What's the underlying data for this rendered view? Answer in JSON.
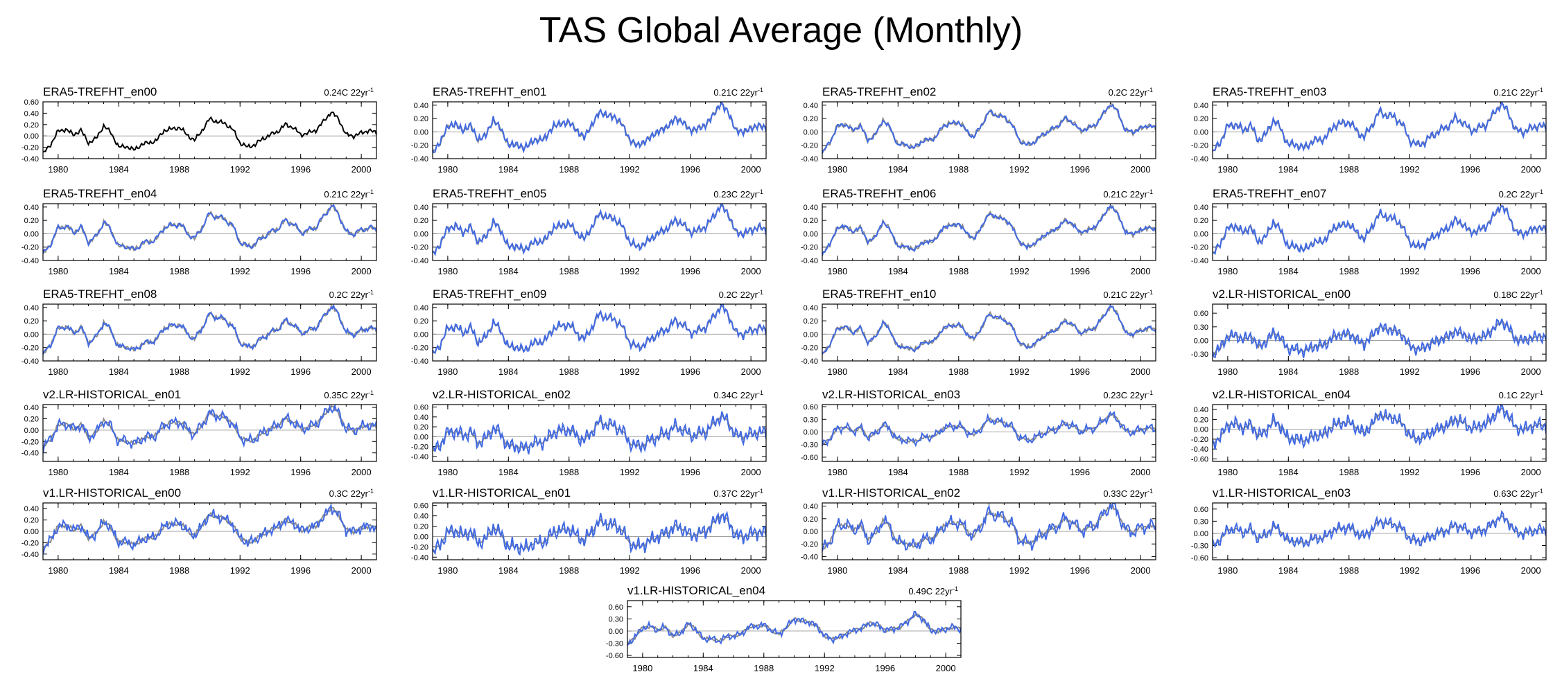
{
  "title": "TAS Global Average (Monthly)",
  "colors": {
    "model": "#4169e1",
    "obs": "#8c8c8c",
    "obs_only": "#000000",
    "zero": "#a0a0a0"
  },
  "time": {
    "start": 1979.0,
    "end": 2001.0,
    "ticks": [
      1980,
      1984,
      1988,
      1992,
      1996,
      2000
    ],
    "tick_labels": [
      "1980",
      "1984",
      "1988",
      "1992",
      "1996",
      "2000"
    ]
  },
  "obs_anomaly": {
    "name": "ERA5-TREFHT_en00",
    "points": [
      [
        1979.0,
        -0.32
      ],
      [
        1979.5,
        -0.15
      ],
      [
        1980.0,
        0.08
      ],
      [
        1980.5,
        0.12
      ],
      [
        1981.0,
        0.02
      ],
      [
        1981.5,
        0.1
      ],
      [
        1982.0,
        -0.12
      ],
      [
        1982.5,
        -0.05
      ],
      [
        1983.0,
        0.18
      ],
      [
        1983.5,
        0.05
      ],
      [
        1984.0,
        -0.2
      ],
      [
        1984.5,
        -0.18
      ],
      [
        1985.0,
        -0.25
      ],
      [
        1985.5,
        -0.15
      ],
      [
        1986.0,
        -0.12
      ],
      [
        1986.5,
        -0.08
      ],
      [
        1987.0,
        0.1
      ],
      [
        1987.5,
        0.12
      ],
      [
        1988.0,
        0.15
      ],
      [
        1988.5,
        0.02
      ],
      [
        1989.0,
        -0.08
      ],
      [
        1989.5,
        0.1
      ],
      [
        1990.0,
        0.3
      ],
      [
        1990.5,
        0.25
      ],
      [
        1991.0,
        0.22
      ],
      [
        1991.5,
        0.12
      ],
      [
        1992.0,
        -0.12
      ],
      [
        1992.5,
        -0.2
      ],
      [
        1993.0,
        -0.15
      ],
      [
        1993.5,
        -0.05
      ],
      [
        1994.0,
        0.02
      ],
      [
        1994.5,
        0.08
      ],
      [
        1995.0,
        0.2
      ],
      [
        1995.5,
        0.15
      ],
      [
        1996.0,
        0.02
      ],
      [
        1996.5,
        0.05
      ],
      [
        1997.0,
        0.1
      ],
      [
        1997.5,
        0.25
      ],
      [
        1998.0,
        0.42
      ],
      [
        1998.5,
        0.3
      ],
      [
        1999.0,
        0.02
      ],
      [
        1999.5,
        0.0
      ],
      [
        2000.0,
        0.05
      ],
      [
        2000.5,
        0.1
      ],
      [
        2001.0,
        0.05
      ]
    ]
  },
  "panels": [
    {
      "name": "ERA5-TREFHT_en00",
      "trend": "0.24C 22yr",
      "ylim": [
        -0.4,
        0.6
      ],
      "yticks": [
        -0.4,
        -0.2,
        0.0,
        0.2,
        0.4,
        0.6
      ],
      "ytick_labels": [
        "-0.40",
        "-0.20",
        "0.00",
        "0.20",
        "0.40",
        "0.60"
      ],
      "obs_only": true,
      "amp": 0,
      "seed": 0
    },
    {
      "name": "ERA5-TREFHT_en01",
      "trend": "0.21C 22yr",
      "ylim": [
        -0.4,
        0.45
      ],
      "yticks": [
        -0.4,
        -0.2,
        0.0,
        0.2,
        0.4
      ],
      "ytick_labels": [
        "-0.40",
        "-0.20",
        "0.00",
        "0.20",
        "0.40"
      ],
      "amp": 0.05,
      "seed": 1
    },
    {
      "name": "ERA5-TREFHT_en02",
      "trend": "0.2C 22yr",
      "ylim": [
        -0.4,
        0.45
      ],
      "yticks": [
        -0.4,
        -0.2,
        0.0,
        0.2,
        0.4
      ],
      "ytick_labels": [
        "-0.40",
        "-0.20",
        "0.00",
        "0.20",
        "0.40"
      ],
      "amp": 0.05,
      "seed": 2
    },
    {
      "name": "ERA5-TREFHT_en03",
      "trend": "0.21C 22yr",
      "ylim": [
        -0.4,
        0.45
      ],
      "yticks": [
        -0.4,
        -0.2,
        0.0,
        0.2,
        0.4
      ],
      "ytick_labels": [
        "-0.40",
        "-0.20",
        "0.00",
        "0.20",
        "0.40"
      ],
      "amp": 0.05,
      "seed": 3
    },
    {
      "name": "ERA5-TREFHT_en04",
      "trend": "0.21C 22yr",
      "ylim": [
        -0.4,
        0.45
      ],
      "yticks": [
        -0.4,
        -0.2,
        0.0,
        0.2,
        0.4
      ],
      "ytick_labels": [
        "-0.40",
        "-0.20",
        "0.00",
        "0.20",
        "0.40"
      ],
      "amp": 0.05,
      "seed": 4
    },
    {
      "name": "ERA5-TREFHT_en05",
      "trend": "0.23C 22yr",
      "ylim": [
        -0.4,
        0.45
      ],
      "yticks": [
        -0.4,
        -0.2,
        0.0,
        0.2,
        0.4
      ],
      "ytick_labels": [
        "-0.40",
        "-0.20",
        "0.00",
        "0.20",
        "0.40"
      ],
      "amp": 0.05,
      "seed": 5
    },
    {
      "name": "ERA5-TREFHT_en06",
      "trend": "0.21C 22yr",
      "ylim": [
        -0.4,
        0.45
      ],
      "yticks": [
        -0.4,
        -0.2,
        0.0,
        0.2,
        0.4
      ],
      "ytick_labels": [
        "-0.40",
        "-0.20",
        "0.00",
        "0.20",
        "0.40"
      ],
      "amp": 0.05,
      "seed": 6
    },
    {
      "name": "ERA5-TREFHT_en07",
      "trend": "0.2C 22yr",
      "ylim": [
        -0.4,
        0.45
      ],
      "yticks": [
        -0.4,
        -0.2,
        0.0,
        0.2,
        0.4
      ],
      "ytick_labels": [
        "-0.40",
        "-0.20",
        "0.00",
        "0.20",
        "0.40"
      ],
      "amp": 0.05,
      "seed": 7
    },
    {
      "name": "ERA5-TREFHT_en08",
      "trend": "0.2C 22yr",
      "ylim": [
        -0.4,
        0.45
      ],
      "yticks": [
        -0.4,
        -0.2,
        0.0,
        0.2,
        0.4
      ],
      "ytick_labels": [
        "-0.40",
        "-0.20",
        "0.00",
        "0.20",
        "0.40"
      ],
      "amp": 0.05,
      "seed": 8
    },
    {
      "name": "ERA5-TREFHT_en09",
      "trend": "0.2C 22yr",
      "ylim": [
        -0.4,
        0.45
      ],
      "yticks": [
        -0.4,
        -0.2,
        0.0,
        0.2,
        0.4
      ],
      "ytick_labels": [
        "-0.40",
        "-0.20",
        "0.00",
        "0.20",
        "0.40"
      ],
      "amp": 0.05,
      "seed": 9
    },
    {
      "name": "ERA5-TREFHT_en10",
      "trend": "0.21C 22yr",
      "ylim": [
        -0.4,
        0.45
      ],
      "yticks": [
        -0.4,
        -0.2,
        0.0,
        0.2,
        0.4
      ],
      "ytick_labels": [
        "-0.40",
        "-0.20",
        "0.00",
        "0.20",
        "0.40"
      ],
      "amp": 0.05,
      "seed": 10
    },
    {
      "name": "v2.LR-HISTORICAL_en00",
      "trend": "0.18C 22yr",
      "ylim": [
        -0.45,
        0.8
      ],
      "yticks": [
        -0.3,
        0.0,
        0.3,
        0.6
      ],
      "ytick_labels": [
        "-0.30",
        "0.00",
        "0.30",
        "0.60"
      ],
      "amp": 0.15,
      "seed": 11
    },
    {
      "name": "v2.LR-HISTORICAL_en01",
      "trend": "0.35C 22yr",
      "ylim": [
        -0.55,
        0.45
      ],
      "yticks": [
        -0.4,
        -0.2,
        0.0,
        0.2,
        0.4
      ],
      "ytick_labels": [
        "-0.40",
        "-0.20",
        "0.00",
        "0.20",
        "0.40"
      ],
      "amp": 0.15,
      "seed": 12
    },
    {
      "name": "v2.LR-HISTORICAL_en02",
      "trend": "0.34C 22yr",
      "ylim": [
        -0.5,
        0.65
      ],
      "yticks": [
        -0.4,
        -0.2,
        0.0,
        0.2,
        0.4,
        0.6
      ],
      "ytick_labels": [
        "-0.40",
        "-0.20",
        "0.00",
        "0.20",
        "0.40",
        "0.60"
      ],
      "amp": 0.15,
      "seed": 13
    },
    {
      "name": "v2.LR-HISTORICAL_en03",
      "trend": "0.23C 22yr",
      "ylim": [
        -0.7,
        0.65
      ],
      "yticks": [
        -0.6,
        -0.3,
        0.0,
        0.3,
        0.6
      ],
      "ytick_labels": [
        "-0.60",
        "-0.30",
        "0.00",
        "0.30",
        "0.60"
      ],
      "amp": 0.15,
      "seed": 14
    },
    {
      "name": "v2.LR-HISTORICAL_en04",
      "trend": "0.1C 22yr",
      "ylim": [
        -0.65,
        0.5
      ],
      "yticks": [
        -0.6,
        -0.4,
        -0.2,
        0.0,
        0.2,
        0.4
      ],
      "ytick_labels": [
        "-0.60",
        "-0.40",
        "-0.20",
        "0.00",
        "0.20",
        "0.40"
      ],
      "amp": 0.15,
      "seed": 15
    },
    {
      "name": "v1.LR-HISTORICAL_en00",
      "trend": "0.3C 22yr",
      "ylim": [
        -0.5,
        0.5
      ],
      "yticks": [
        -0.4,
        -0.2,
        0.0,
        0.2,
        0.4
      ],
      "ytick_labels": [
        "-0.40",
        "-0.20",
        "0.00",
        "0.20",
        "0.40"
      ],
      "amp": 0.15,
      "seed": 16
    },
    {
      "name": "v1.LR-HISTORICAL_en01",
      "trend": "0.37C 22yr",
      "ylim": [
        -0.45,
        0.65
      ],
      "yticks": [
        -0.4,
        -0.2,
        0.0,
        0.2,
        0.4,
        0.6
      ],
      "ytick_labels": [
        "-0.40",
        "-0.20",
        "0.00",
        "0.20",
        "0.40",
        "0.60"
      ],
      "amp": 0.15,
      "seed": 17
    },
    {
      "name": "v1.LR-HISTORICAL_en02",
      "trend": "0.33C 22yr",
      "ylim": [
        -0.45,
        0.45
      ],
      "yticks": [
        -0.4,
        -0.2,
        0.0,
        0.2,
        0.4
      ],
      "ytick_labels": [
        "-0.40",
        "-0.20",
        "0.00",
        "0.20",
        "0.40"
      ],
      "amp": 0.15,
      "seed": 18
    },
    {
      "name": "v1.LR-HISTORICAL_en03",
      "trend": "0.63C 22yr",
      "ylim": [
        -0.65,
        0.75
      ],
      "yticks": [
        -0.6,
        -0.3,
        0.0,
        0.3,
        0.6
      ],
      "ytick_labels": [
        "-0.60",
        "-0.30",
        "0.00",
        "0.30",
        "0.60"
      ],
      "amp": 0.15,
      "seed": 19
    },
    {
      "name": "v1.LR-HISTORICAL_en04",
      "trend": "0.49C 22yr",
      "ylim": [
        -0.65,
        0.75
      ],
      "yticks": [
        -0.6,
        -0.3,
        0.0,
        0.3,
        0.6
      ],
      "ytick_labels": [
        "-0.60",
        "-0.30",
        "0.00",
        "0.30",
        "0.60"
      ],
      "amp": 0.15,
      "seed": 20
    }
  ],
  "chart_data": {
    "type": "line",
    "title": "TAS Global Average (Monthly)",
    "xlabel": "",
    "ylabel": "",
    "xlim": [
      1979,
      2001
    ],
    "series": [
      {
        "name": "ERA5 observed anomaly (en00)",
        "color": "black/gray",
        "x": [
          1979,
          1980,
          1981,
          1982,
          1983,
          1984,
          1985,
          1986,
          1987,
          1988,
          1989,
          1990,
          1991,
          1992,
          1993,
          1994,
          1995,
          1996,
          1997,
          1998,
          1999,
          2000,
          2001
        ],
        "values": [
          -0.32,
          0.08,
          0.02,
          -0.12,
          0.18,
          -0.2,
          -0.25,
          -0.12,
          0.1,
          0.15,
          -0.08,
          0.3,
          0.22,
          -0.12,
          -0.15,
          0.02,
          0.2,
          0.02,
          0.1,
          0.42,
          0.02,
          0.05,
          0.05
        ]
      }
    ],
    "panels": [
      "ERA5-TREFHT_en00",
      "ERA5-TREFHT_en01",
      "ERA5-TREFHT_en02",
      "ERA5-TREFHT_en03",
      "ERA5-TREFHT_en04",
      "ERA5-TREFHT_en05",
      "ERA5-TREFHT_en06",
      "ERA5-TREFHT_en07",
      "ERA5-TREFHT_en08",
      "ERA5-TREFHT_en09",
      "ERA5-TREFHT_en10",
      "v2.LR-HISTORICAL_en00",
      "v2.LR-HISTORICAL_en01",
      "v2.LR-HISTORICAL_en02",
      "v2.LR-HISTORICAL_en03",
      "v2.LR-HISTORICAL_en04",
      "v1.LR-HISTORICAL_en00",
      "v1.LR-HISTORICAL_en01",
      "v1.LR-HISTORICAL_en02",
      "v1.LR-HISTORICAL_en03",
      "v1.LR-HISTORICAL_en04"
    ],
    "trends_C_per_22yr": [
      0.24,
      0.21,
      0.2,
      0.21,
      0.21,
      0.23,
      0.21,
      0.2,
      0.2,
      0.2,
      0.21,
      0.18,
      0.35,
      0.34,
      0.23,
      0.1,
      0.3,
      0.37,
      0.33,
      0.63,
      0.49
    ]
  }
}
